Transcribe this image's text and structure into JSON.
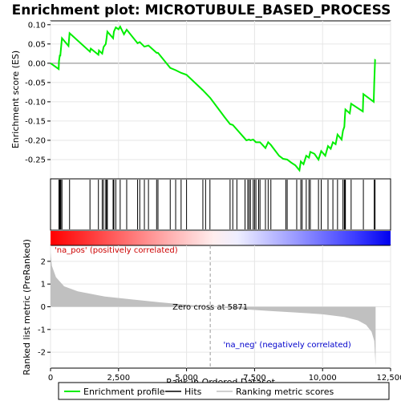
{
  "chart_data": {
    "type": "line",
    "title": "Enrichment plot: MICROTUBULE_BASED_PROCESS",
    "ylabel_top": "Enrichment score (ES)",
    "ylabel_bottom": "Ranked list metric (PreRanked)",
    "xlabel": "Rank in Ordered Dataset",
    "xlim": [
      0,
      12500
    ],
    "ylim_top": [
      -0.3,
      0.11
    ],
    "ylim_bottom": [
      -2.7,
      2.7
    ],
    "x_ticks": [
      {
        "v": 0,
        "label": "0"
      },
      {
        "v": 2500,
        "label": "2,500"
      },
      {
        "v": 5000,
        "label": "5,000"
      },
      {
        "v": 7500,
        "label": "7,500"
      },
      {
        "v": 10000,
        "label": "10,000"
      },
      {
        "v": 12500,
        "label": "12,500"
      }
    ],
    "y_ticks_top": [
      {
        "v": 0.1,
        "label": "0.10"
      },
      {
        "v": 0.05,
        "label": "0.05"
      },
      {
        "v": 0.0,
        "label": "0.00"
      },
      {
        "v": -0.05,
        "label": "-0.05"
      },
      {
        "v": -0.1,
        "label": "-0.10"
      },
      {
        "v": -0.15,
        "label": "-0.15"
      },
      {
        "v": -0.2,
        "label": "-0.20"
      },
      {
        "v": -0.25,
        "label": "-0.25"
      }
    ],
    "y_ticks_bottom": [
      {
        "v": 2,
        "label": "2"
      },
      {
        "v": 1,
        "label": "1"
      },
      {
        "v": 0,
        "label": "0"
      },
      {
        "v": -1,
        "label": "-1"
      },
      {
        "v": -2,
        "label": "-2"
      }
    ],
    "zero_cross": 5871,
    "zero_cross_label": "Zero cross at 5871",
    "pos_label": "'na_pos' (positively correlated)",
    "neg_label": "'na_neg' (negatively correlated)",
    "n_genes": 11950,
    "es_profile": [
      [
        0,
        0.0
      ],
      [
        300,
        -0.015
      ],
      [
        310,
        0.005
      ],
      [
        340,
        0.02
      ],
      [
        360,
        0.02
      ],
      [
        380,
        0.035
      ],
      [
        420,
        0.065
      ],
      [
        660,
        0.045
      ],
      [
        700,
        0.078
      ],
      [
        1450,
        0.03
      ],
      [
        1480,
        0.038
      ],
      [
        1760,
        0.022
      ],
      [
        1780,
        0.033
      ],
      [
        1900,
        0.025
      ],
      [
        1950,
        0.042
      ],
      [
        2030,
        0.05
      ],
      [
        2060,
        0.065
      ],
      [
        2090,
        0.082
      ],
      [
        2300,
        0.065
      ],
      [
        2330,
        0.082
      ],
      [
        2400,
        0.093
      ],
      [
        2500,
        0.088
      ],
      [
        2560,
        0.095
      ],
      [
        2700,
        0.075
      ],
      [
        2800,
        0.087
      ],
      [
        3200,
        0.052
      ],
      [
        3280,
        0.055
      ],
      [
        3450,
        0.043
      ],
      [
        3600,
        0.046
      ],
      [
        3900,
        0.027
      ],
      [
        3950,
        0.027
      ],
      [
        4400,
        -0.012
      ],
      [
        4600,
        -0.018
      ],
      [
        4800,
        -0.025
      ],
      [
        5000,
        -0.03
      ],
      [
        5600,
        -0.07
      ],
      [
        5871,
        -0.09
      ],
      [
        6400,
        -0.14
      ],
      [
        6600,
        -0.158
      ],
      [
        6700,
        -0.16
      ],
      [
        7200,
        -0.2
      ],
      [
        7300,
        -0.198
      ],
      [
        7350,
        -0.2
      ],
      [
        7450,
        -0.198
      ],
      [
        7550,
        -0.205
      ],
      [
        7700,
        -0.205
      ],
      [
        7900,
        -0.22
      ],
      [
        8000,
        -0.205
      ],
      [
        8100,
        -0.212
      ],
      [
        8400,
        -0.24
      ],
      [
        8550,
        -0.248
      ],
      [
        8700,
        -0.25
      ],
      [
        8850,
        -0.258
      ],
      [
        9000,
        -0.265
      ],
      [
        9150,
        -0.278
      ],
      [
        9200,
        -0.255
      ],
      [
        9300,
        -0.262
      ],
      [
        9400,
        -0.24
      ],
      [
        9500,
        -0.245
      ],
      [
        9550,
        -0.23
      ],
      [
        9700,
        -0.235
      ],
      [
        9850,
        -0.25
      ],
      [
        9950,
        -0.228
      ],
      [
        10100,
        -0.24
      ],
      [
        10200,
        -0.215
      ],
      [
        10300,
        -0.222
      ],
      [
        10380,
        -0.205
      ],
      [
        10480,
        -0.21
      ],
      [
        10550,
        -0.185
      ],
      [
        10700,
        -0.198
      ],
      [
        10750,
        -0.175
      ],
      [
        10800,
        -0.165
      ],
      [
        10820,
        -0.14
      ],
      [
        10840,
        -0.12
      ],
      [
        11000,
        -0.13
      ],
      [
        11050,
        -0.105
      ],
      [
        11480,
        -0.125
      ],
      [
        11500,
        -0.08
      ],
      [
        11880,
        -0.1
      ],
      [
        11900,
        -0.05
      ],
      [
        11930,
        0.008
      ],
      [
        11950,
        0.007
      ]
    ],
    "hits": [
      310,
      340,
      360,
      380,
      420,
      700,
      1450,
      1760,
      1900,
      1950,
      2030,
      2060,
      2090,
      2300,
      2330,
      2400,
      2560,
      2800,
      3200,
      3280,
      3450,
      3600,
      3900,
      3950,
      4400,
      4600,
      4800,
      5000,
      5600,
      5700,
      5860,
      6600,
      6700,
      6850,
      7150,
      7250,
      7300,
      7350,
      7450,
      7500,
      7550,
      7650,
      7700,
      7900,
      8000,
      8100,
      8650,
      8700,
      9050,
      9200,
      9250,
      9400,
      9500,
      9550,
      9850,
      9950,
      10200,
      10380,
      10550,
      10750,
      10800,
      10820,
      10840,
      11050,
      11500,
      11900,
      11930
    ],
    "metric_curve": [
      [
        0,
        2.4
      ],
      [
        50,
        1.8
      ],
      [
        200,
        1.3
      ],
      [
        500,
        0.9
      ],
      [
        1000,
        0.68
      ],
      [
        2000,
        0.45
      ],
      [
        3000,
        0.32
      ],
      [
        4000,
        0.2
      ],
      [
        5000,
        0.09
      ],
      [
        5871,
        0.0
      ],
      [
        7000,
        -0.1
      ],
      [
        8000,
        -0.18
      ],
      [
        9000,
        -0.25
      ],
      [
        10000,
        -0.33
      ],
      [
        10800,
        -0.45
      ],
      [
        11300,
        -0.6
      ],
      [
        11600,
        -0.8
      ],
      [
        11800,
        -1.1
      ],
      [
        11900,
        -1.5
      ],
      [
        11950,
        -2.6
      ]
    ],
    "colors": {
      "es_line": "#00ee00",
      "hits": "#000000",
      "metric_fill": "#c0c0c0",
      "pos_text": "#cc0000",
      "neg_text": "#0000cc",
      "bar_red": "#ff0000",
      "bar_white": "#ffffff",
      "bar_blue": "#0000ff"
    },
    "legend": [
      {
        "label": "Enrichment profile",
        "kind": "line",
        "color": "#00ee00"
      },
      {
        "label": "Hits",
        "kind": "line",
        "color": "#000000"
      },
      {
        "label": "Ranking metric scores",
        "kind": "line",
        "color": "#c0c0c0"
      }
    ]
  }
}
